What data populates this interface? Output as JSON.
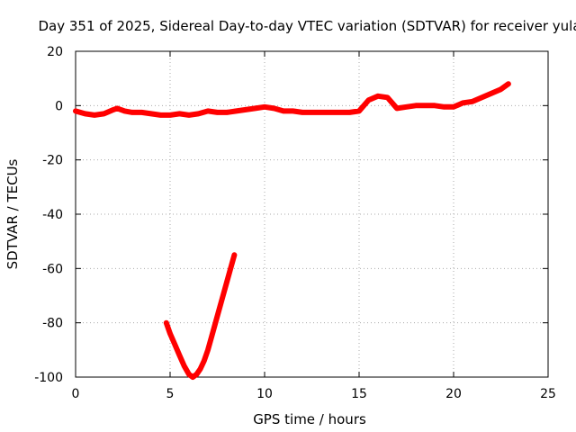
{
  "chart_data": {
    "type": "line",
    "title": "Day 351 of 2025, Sidereal Day-to-day VTEC variation (SDTVAR) for receiver yula",
    "xlabel": "GPS time / hours",
    "ylabel": "SDTVAR / TECUs",
    "xlim": [
      0,
      25
    ],
    "ylim": [
      -100,
      20
    ],
    "xticks": [
      "0",
      "5",
      "10",
      "15",
      "20",
      "25"
    ],
    "yticks": [
      "-100",
      "-80",
      "-60",
      "-40",
      "-20",
      "0",
      "20"
    ],
    "grid": true,
    "line_color": "#ff0000",
    "series": [
      {
        "x": [
          0.0,
          0.5,
          1.0,
          1.5,
          2.0,
          2.2,
          2.6,
          3.0,
          3.5,
          4.0,
          4.5,
          5.0,
          5.5,
          6.0,
          6.5,
          7.0,
          7.5,
          8.0,
          8.5,
          9.0,
          9.5,
          10.0,
          10.5,
          11.0,
          11.5,
          12.0,
          12.5,
          13.0,
          13.5,
          14.0,
          14.5,
          15.0,
          15.5,
          16.0,
          16.5,
          17.0,
          17.5,
          18.0,
          18.5,
          19.0,
          19.5,
          20.0,
          20.5,
          21.0,
          21.5,
          22.0,
          22.5,
          22.9
        ],
        "y": [
          -2,
          -3,
          -3.5,
          -3,
          -1.5,
          -1,
          -2,
          -2.5,
          -2.5,
          -3,
          -3.5,
          -3.5,
          -3,
          -3.5,
          -3,
          -2,
          -2.5,
          -2.5,
          -2,
          -1.5,
          -1,
          -0.5,
          -1,
          -2,
          -2,
          -2.5,
          -2.5,
          -2.5,
          -2.5,
          -2.5,
          -2.5,
          -2,
          2,
          3.5,
          3,
          -1,
          -0.5,
          0,
          0,
          0,
          -0.5,
          -0.5,
          1,
          1.5,
          3,
          4.5,
          6,
          8
        ]
      },
      {
        "x": [
          4.8,
          5.0,
          5.25,
          5.5,
          5.75,
          6.0,
          6.2,
          6.4,
          6.6,
          6.8,
          7.0,
          7.2,
          7.4,
          7.6,
          7.8,
          8.0,
          8.2,
          8.4
        ],
        "y": [
          -80,
          -84,
          -88,
          -92,
          -96,
          -99,
          -100,
          -99,
          -97,
          -94,
          -90,
          -85,
          -80,
          -75,
          -70,
          -65,
          -60,
          -55
        ]
      }
    ]
  }
}
